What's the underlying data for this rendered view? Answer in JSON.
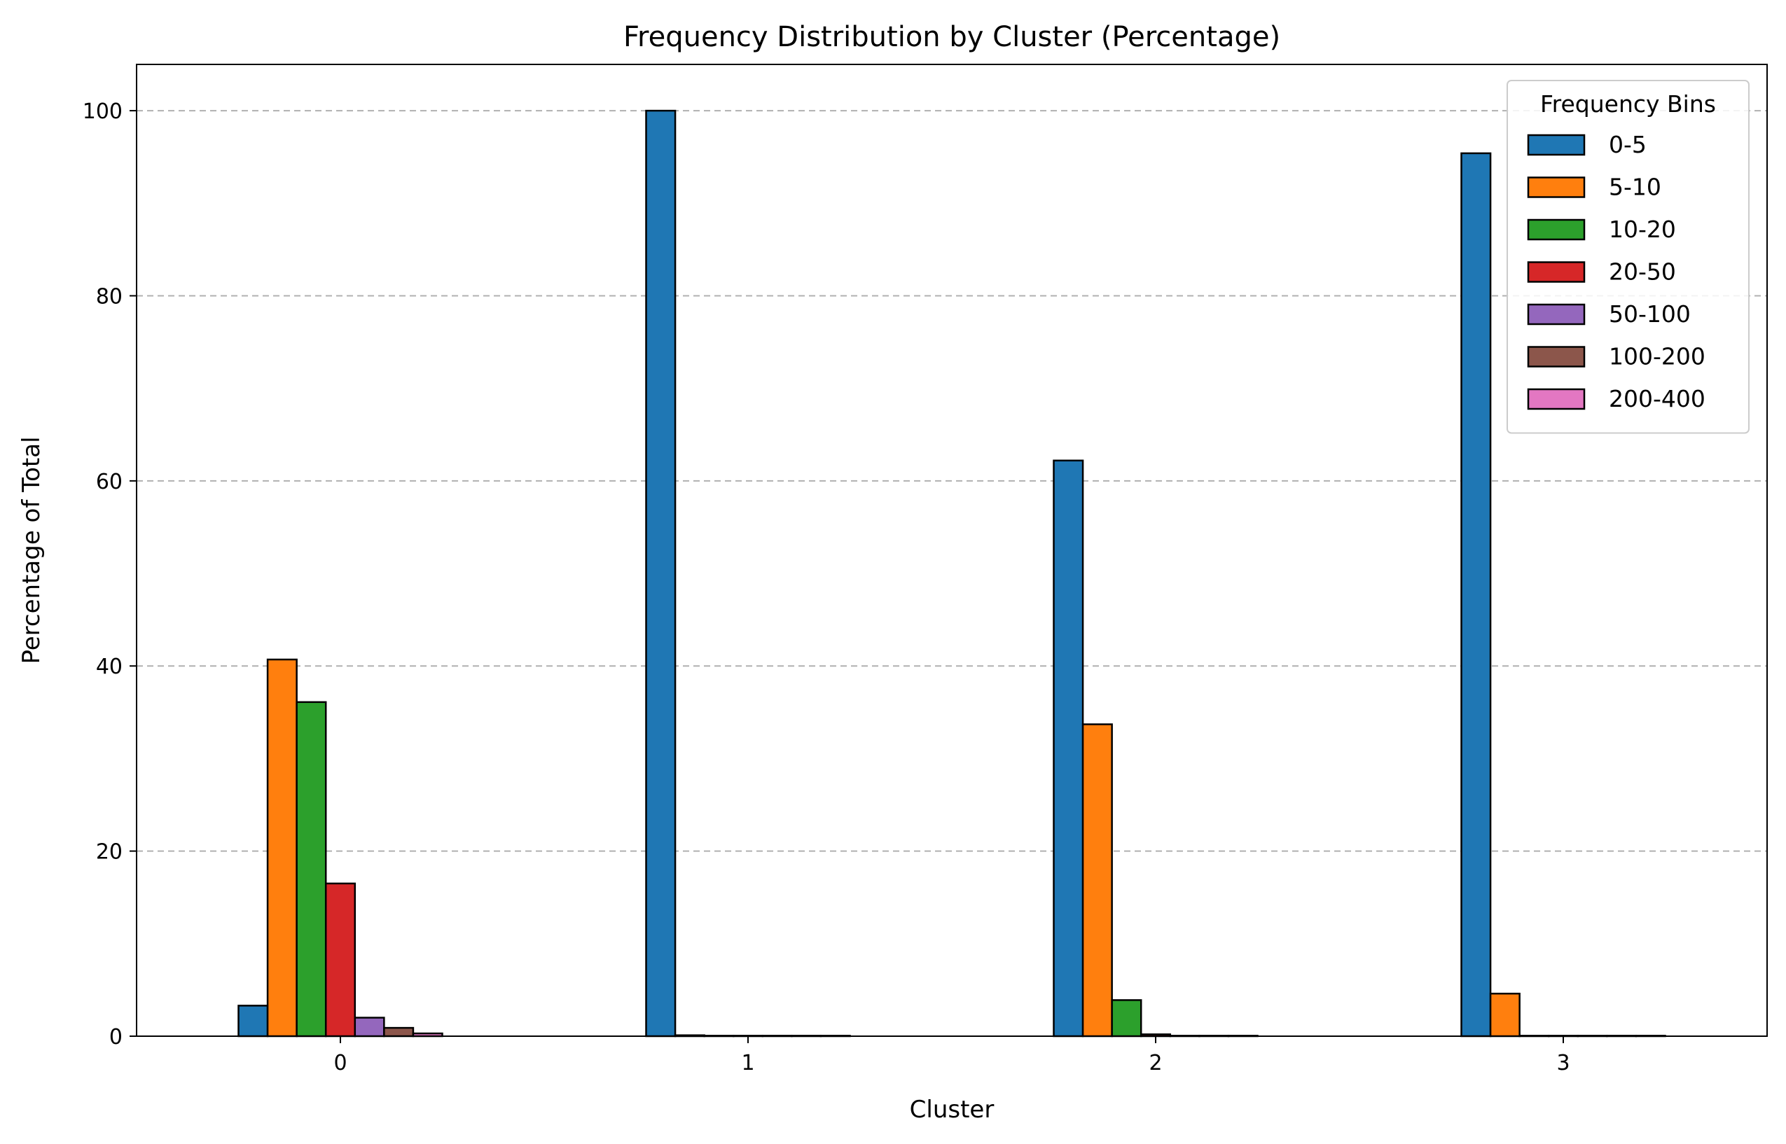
{
  "chart_data": {
    "type": "bar",
    "title": "Frequency Distribution by Cluster (Percentage)",
    "xlabel": "Cluster",
    "ylabel": "Percentage of Total",
    "categories": [
      "0",
      "1",
      "2",
      "3"
    ],
    "ylim": [
      0,
      105
    ],
    "yticks": [
      0,
      20,
      40,
      60,
      80,
      100
    ],
    "grid": "y-dashed",
    "legend": {
      "title": "Frequency Bins",
      "placement": "top-right"
    },
    "series": [
      {
        "name": "0-5",
        "color": "#1f77b4",
        "values": [
          3.3,
          100.0,
          62.2,
          95.4
        ]
      },
      {
        "name": "5-10",
        "color": "#ff7f0e",
        "values": [
          40.7,
          0.1,
          33.7,
          4.6
        ]
      },
      {
        "name": "10-20",
        "color": "#2ca02c",
        "values": [
          36.1,
          0.05,
          3.9,
          0.05
        ]
      },
      {
        "name": "20-50",
        "color": "#d62728",
        "values": [
          16.5,
          0.05,
          0.2,
          0.05
        ]
      },
      {
        "name": "50-100",
        "color": "#9467bd",
        "values": [
          2.0,
          0.05,
          0.05,
          0.05
        ]
      },
      {
        "name": "100-200",
        "color": "#8c564b",
        "values": [
          0.9,
          0.05,
          0.05,
          0.05
        ]
      },
      {
        "name": "200-400",
        "color": "#e377c2",
        "values": [
          0.3,
          0.05,
          0.05,
          0.05
        ]
      }
    ]
  }
}
